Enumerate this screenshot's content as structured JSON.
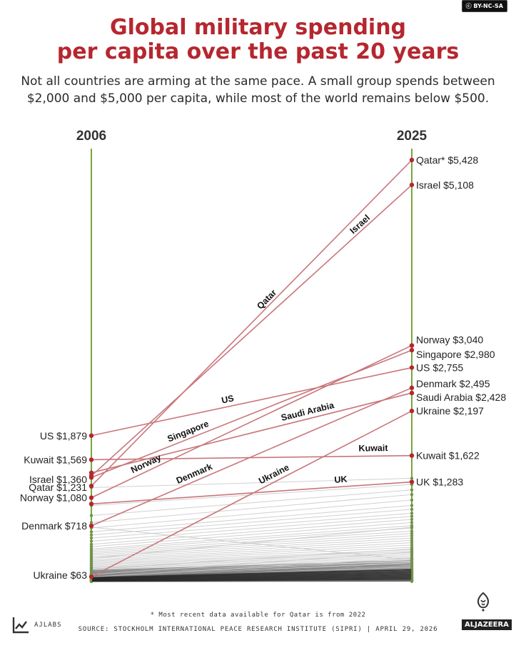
{
  "license_badge": "BY-NC-SA",
  "title_line1": "Global military spending",
  "title_line2": "per capita over the past 20 years",
  "subtitle_line1": "Not all countries are arming at the same pace. A small group spends between",
  "subtitle_line2": "$2,000 and $5,000 per capita, while most of the world remains below $500.",
  "footnote": "* Most recent data available for Qatar is from 2022",
  "source": "SOURCE: STOCKHOLM INTERNATIONAL PEACE RESEARCH INSTITUTE (SIPRI)  |  APRIL 29, 2026",
  "brand_left": "AJLABS",
  "brand_right": "ALJAZEERA",
  "colors": {
    "accent": "#b5272f",
    "highlight_line": "#c9767b",
    "axis": "#6a9a2a",
    "background_lines": "#c8c8c8",
    "text": "#222222"
  },
  "chart_data": {
    "type": "slope",
    "x_labels": [
      "2006",
      "2025"
    ],
    "ylim": [
      0,
      5600
    ],
    "highlighted": [
      {
        "name": "US",
        "v2006": 1879,
        "v2025": 2755,
        "left_label": "US $1,879",
        "right_label": "US $2,755"
      },
      {
        "name": "Kuwait",
        "v2006": 1569,
        "v2025": 1622,
        "left_label": "Kuwait $1,569",
        "right_label": "Kuwait $1,622"
      },
      {
        "name": "Israel",
        "v2006": 1360,
        "v2025": 5108,
        "left_label": "Israel $1,360",
        "right_label": "Israel $5,108"
      },
      {
        "name": "Qatar",
        "v2006": 1231,
        "v2025": 5428,
        "left_label": "Qatar $1,231",
        "right_label": "Qatar* $5,428"
      },
      {
        "name": "Norway",
        "v2006": 1080,
        "v2025": 3040,
        "left_label": "Norway $1,080",
        "right_label": "Norway $3,040"
      },
      {
        "name": "Singapore",
        "v2006": 1340,
        "v2025": 2980,
        "left_label": "",
        "right_label": "Singapore $2,980"
      },
      {
        "name": "Denmark",
        "v2006": 718,
        "v2025": 2495,
        "left_label": "Denmark $718",
        "right_label": "Denmark $2,495"
      },
      {
        "name": "Saudi Arabia",
        "v2006": 1400,
        "v2025": 2428,
        "left_label": "",
        "right_label": "Saudi Arabia $2,428"
      },
      {
        "name": "UK",
        "v2006": 1000,
        "v2025": 1283,
        "left_label": "",
        "right_label": "UK $1,283"
      },
      {
        "name": "Ukraine",
        "v2006": 63,
        "v2025": 2197,
        "left_label": "Ukraine $63",
        "right_label": "Ukraine $2,197"
      }
    ],
    "background": [
      [
        1210,
        1330
      ],
      [
        980,
        1250
      ],
      [
        850,
        1180
      ],
      [
        760,
        1120
      ],
      [
        690,
        1050
      ],
      [
        640,
        980
      ],
      [
        600,
        930
      ],
      [
        560,
        880
      ],
      [
        520,
        840
      ],
      [
        480,
        800
      ],
      [
        450,
        760
      ],
      [
        420,
        720
      ],
      [
        400,
        690
      ],
      [
        380,
        650
      ],
      [
        360,
        620
      ],
      [
        340,
        590
      ],
      [
        320,
        560
      ],
      [
        300,
        530
      ],
      [
        280,
        500
      ],
      [
        265,
        470
      ],
      [
        250,
        440
      ],
      [
        235,
        410
      ],
      [
        220,
        390
      ],
      [
        205,
        370
      ],
      [
        190,
        350
      ],
      [
        178,
        330
      ],
      [
        166,
        310
      ],
      [
        155,
        290
      ],
      [
        144,
        270
      ],
      [
        134,
        250
      ],
      [
        124,
        235
      ],
      [
        115,
        220
      ],
      [
        106,
        205
      ],
      [
        98,
        190
      ],
      [
        90,
        175
      ],
      [
        82,
        160
      ],
      [
        75,
        148
      ],
      [
        68,
        136
      ],
      [
        62,
        125
      ],
      [
        56,
        114
      ],
      [
        50,
        104
      ],
      [
        45,
        95
      ],
      [
        40,
        86
      ],
      [
        35,
        78
      ],
      [
        30,
        70
      ],
      [
        26,
        62
      ],
      [
        22,
        55
      ],
      [
        18,
        48
      ],
      [
        15,
        42
      ],
      [
        12,
        36
      ],
      [
        10,
        30
      ],
      [
        8,
        26
      ],
      [
        6,
        22
      ],
      [
        5,
        18
      ],
      [
        4,
        15
      ],
      [
        3,
        12
      ],
      [
        2,
        10
      ],
      [
        2,
        8
      ],
      [
        1,
        6
      ],
      [
        1,
        4
      ],
      [
        700,
        280
      ],
      [
        300,
        700
      ],
      [
        160,
        420
      ],
      [
        90,
        380
      ],
      [
        60,
        300
      ],
      [
        40,
        220
      ],
      [
        25,
        160
      ],
      [
        15,
        120
      ],
      [
        10,
        90
      ],
      [
        5,
        60
      ]
    ]
  }
}
